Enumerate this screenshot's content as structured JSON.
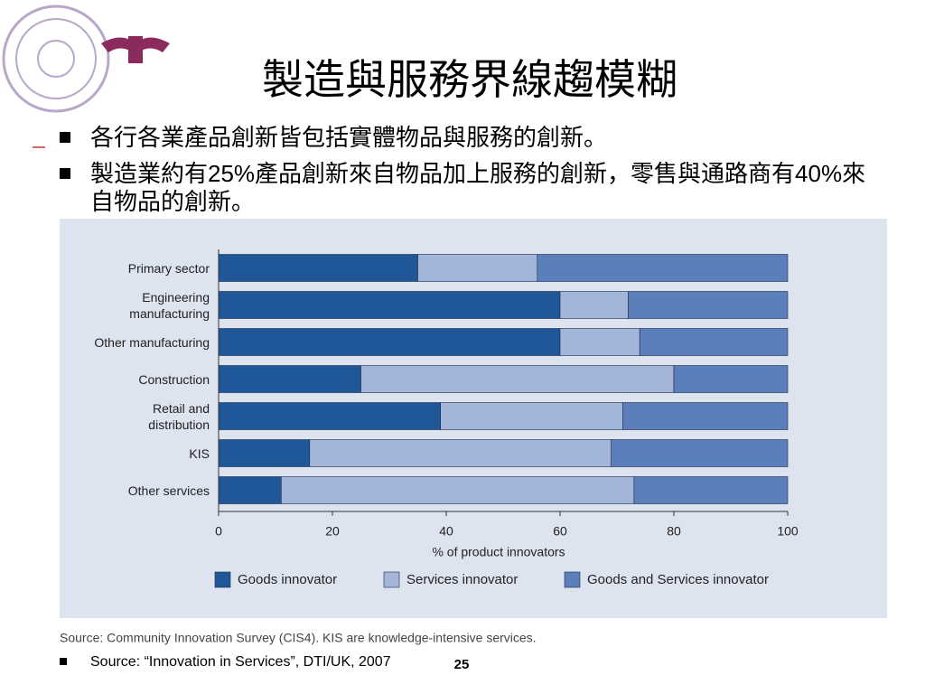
{
  "slide": {
    "title": "製造與服務界線趨模糊",
    "bullets": [
      "各行各業產品創新皆包括實體物品與服務的創新。",
      "製造業約有25%產品創新來自物品加上服務的創新，零售與通路商有40%來自物品的創新。"
    ],
    "chart_source": "Source: Community Innovation Survey (CIS4). KIS are knowledge-intensive services.",
    "footnote": "Source: “Innovation in Services”, DTI/UK, 2007",
    "page_number": "25"
  },
  "chart_data": {
    "type": "stacked_bar_horizontal",
    "categories": [
      "Primary sector",
      "Engineering manufacturing",
      "Other manufacturing",
      "Construction",
      "Retail and distribution",
      "KIS",
      "Other services"
    ],
    "series": [
      {
        "name": "Goods innovator",
        "color": "#1f5799",
        "values": [
          35,
          60,
          60,
          25,
          39,
          16,
          11
        ]
      },
      {
        "name": "Services innovator",
        "color": "#a3b6d9",
        "values": [
          21,
          12,
          14,
          55,
          32,
          53,
          62
        ]
      },
      {
        "name": "Goods and Services innovator",
        "color": "#5b7fba",
        "values": [
          44,
          28,
          26,
          20,
          29,
          31,
          27
        ]
      }
    ],
    "xlabel": "% of product innovators",
    "xlim": [
      0,
      100
    ],
    "xticks": [
      0,
      20,
      40,
      60,
      80,
      100
    ],
    "legend": "bottom"
  }
}
